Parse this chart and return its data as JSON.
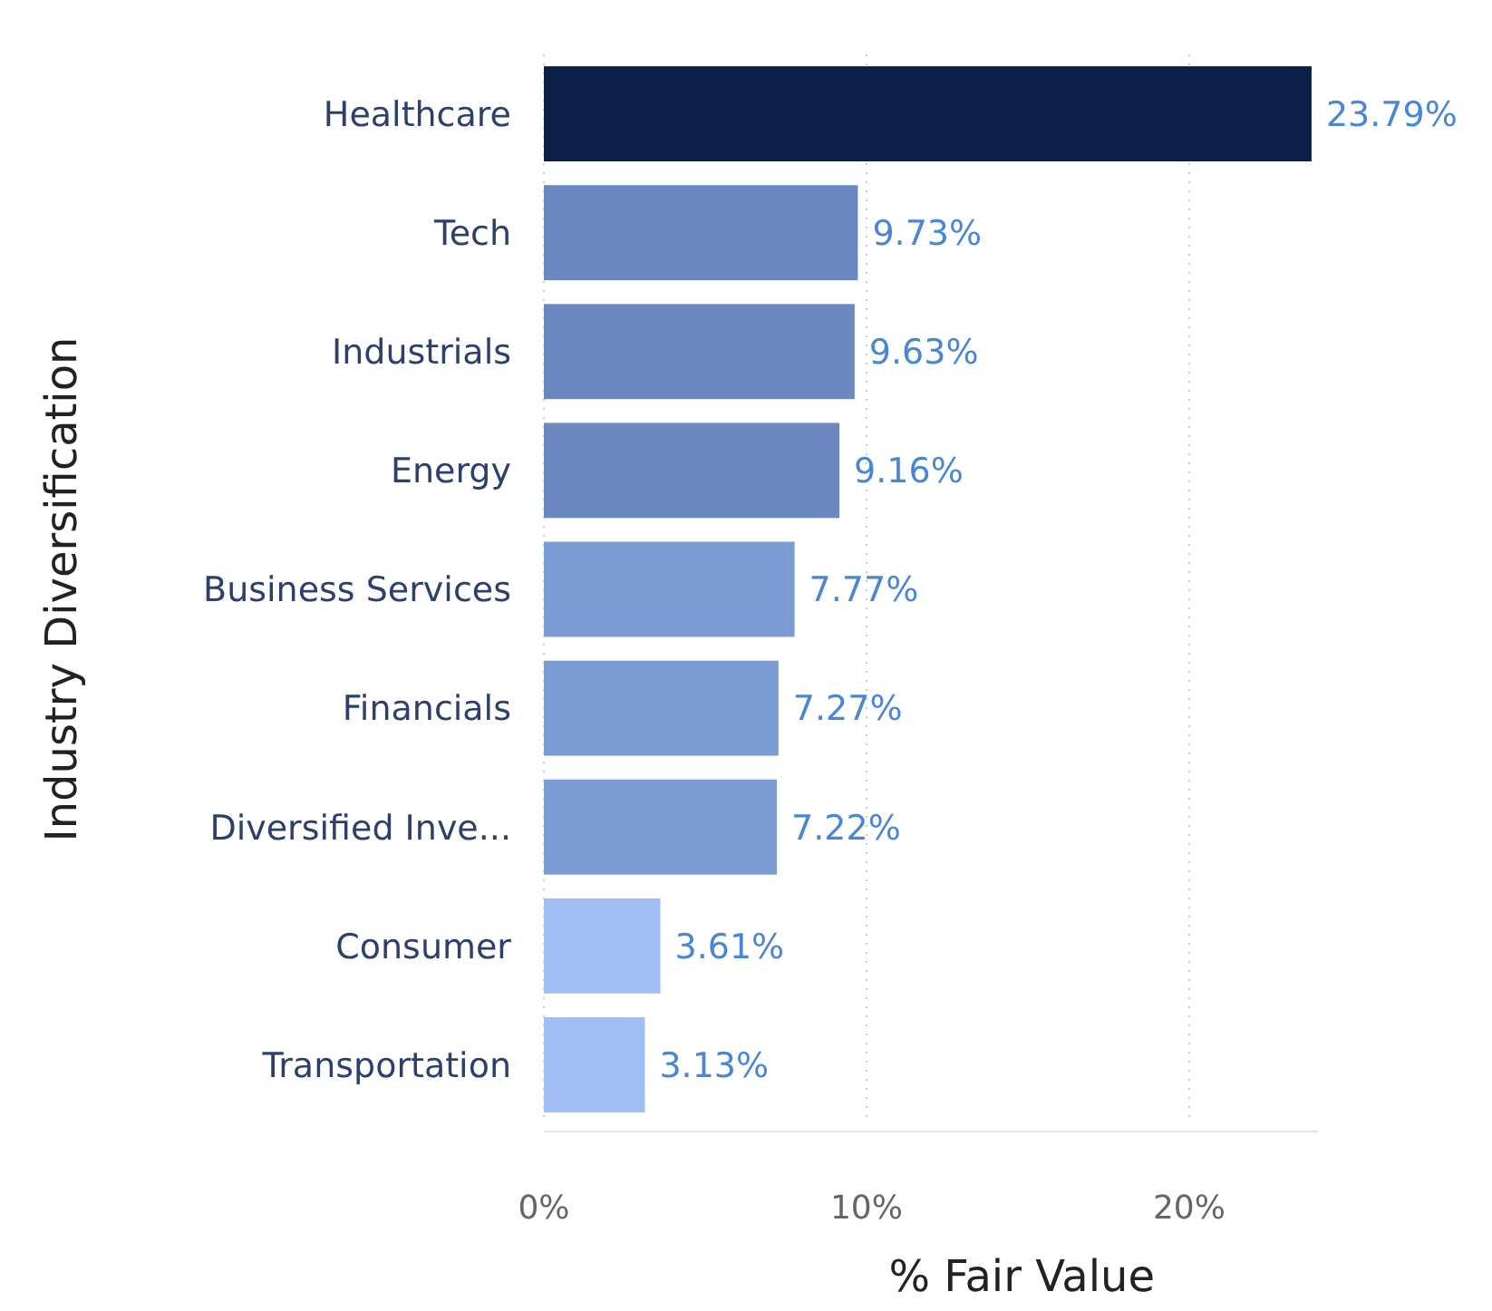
{
  "chart_data": {
    "type": "bar",
    "orientation": "horizontal",
    "xlabel": "% Fair Value",
    "ylabel": "Industry Diversification",
    "categories": [
      "Healthcare",
      "Tech",
      "Industrials",
      "Energy",
      "Business Services",
      "Financials",
      "Diversified Inve...",
      "Consumer",
      "Transportation"
    ],
    "values": [
      23.79,
      9.73,
      9.63,
      9.16,
      7.77,
      7.27,
      7.22,
      3.61,
      3.13
    ],
    "value_labels": [
      "23.79%",
      "9.73%",
      "9.63%",
      "9.16%",
      "7.77%",
      "7.27%",
      "7.22%",
      "3.61%",
      "3.13%"
    ],
    "colors": [
      "#0a2048",
      "#6b89c0",
      "#6b89c0",
      "#6b89c0",
      "#7b9bd4",
      "#7b9bd4",
      "#7b9bd4",
      "#a0bdf4",
      "#a0bdf4"
    ],
    "xlim": [
      0,
      24
    ],
    "xticks": [
      {
        "value": 0,
        "label": "0%"
      },
      {
        "value": 10,
        "label": "10%"
      },
      {
        "value": 20,
        "label": "20%"
      }
    ],
    "grid": "x"
  }
}
